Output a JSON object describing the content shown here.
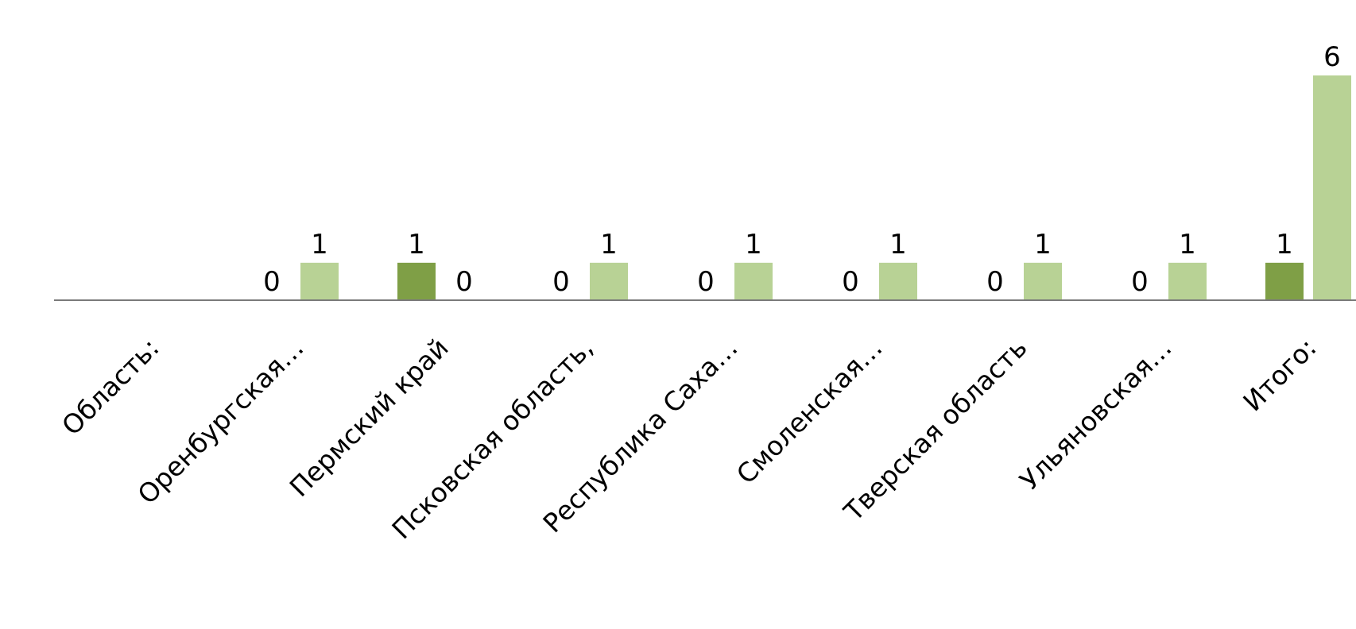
{
  "chart_data": {
    "type": "bar",
    "title": "",
    "xlabel": "",
    "ylabel": "",
    "ylim": [
      0,
      6
    ],
    "grid": false,
    "legend": "none",
    "categories": [
      "Область:",
      "Оренбургская…",
      "Пермский край",
      "Псковская область,",
      "Республика Саха…",
      "Смоленская…",
      "Тверская область",
      "Ульяновская…",
      "Итого:"
    ],
    "series": [
      {
        "color": "#7f9f46",
        "values": [
          null,
          0,
          1,
          0,
          0,
          0,
          0,
          0,
          1
        ]
      },
      {
        "color": "#b8d295",
        "values": [
          null,
          1,
          0,
          1,
          1,
          1,
          1,
          1,
          6
        ]
      }
    ],
    "axis_color": "#7a7a7a"
  }
}
